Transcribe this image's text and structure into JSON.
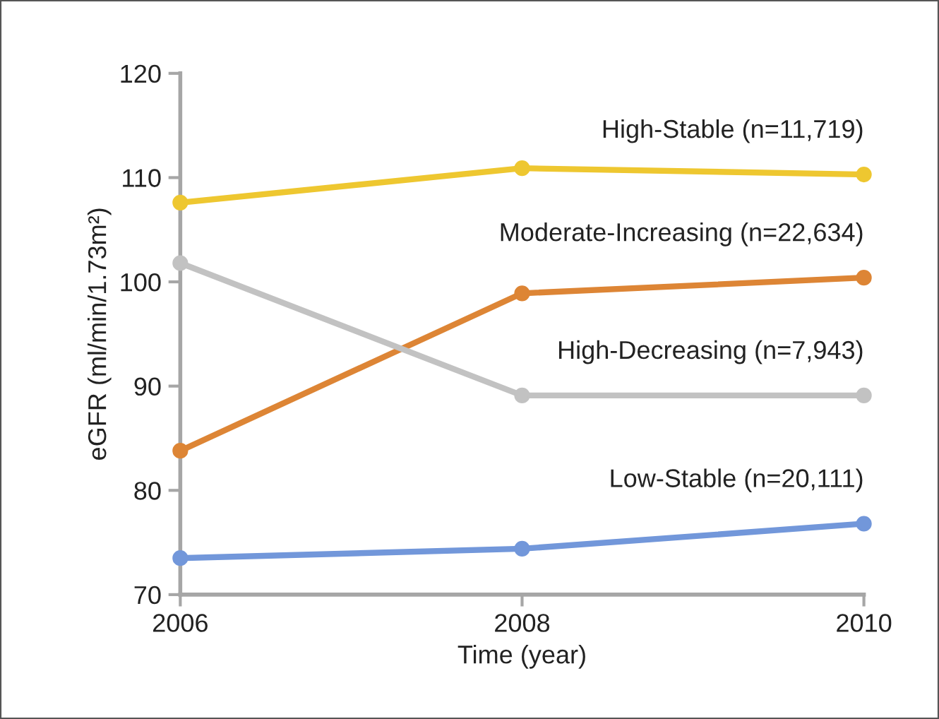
{
  "chart_data": {
    "type": "line",
    "xlabel": "Time (year)",
    "ylabel": "eGFR (ml/min/1.73m²)",
    "x": [
      2006,
      2008,
      2010
    ],
    "xlim": [
      2006,
      2010
    ],
    "xticks": [
      2006,
      2008,
      2010
    ],
    "ylim": [
      70,
      120
    ],
    "yticks": [
      70,
      80,
      90,
      100,
      110,
      120
    ],
    "grid": false,
    "legend": false,
    "marker": "circle",
    "line_style": "solid",
    "series": [
      {
        "name": "High-Stable (n=11,719)",
        "color": "#eec730",
        "values": [
          107.6,
          110.9,
          110.3
        ]
      },
      {
        "name": "Moderate-Increasing (n=22,634)",
        "color": "#dd8535",
        "values": [
          83.8,
          98.9,
          100.4
        ]
      },
      {
        "name": "High-Decreasing (n=7,943)",
        "color": "#c2c2c2",
        "values": [
          101.8,
          89.1,
          89.1
        ]
      },
      {
        "name": "Low-Stable (n=20,111)",
        "color": "#7297da",
        "values": [
          73.5,
          74.4,
          76.8
        ]
      }
    ]
  }
}
